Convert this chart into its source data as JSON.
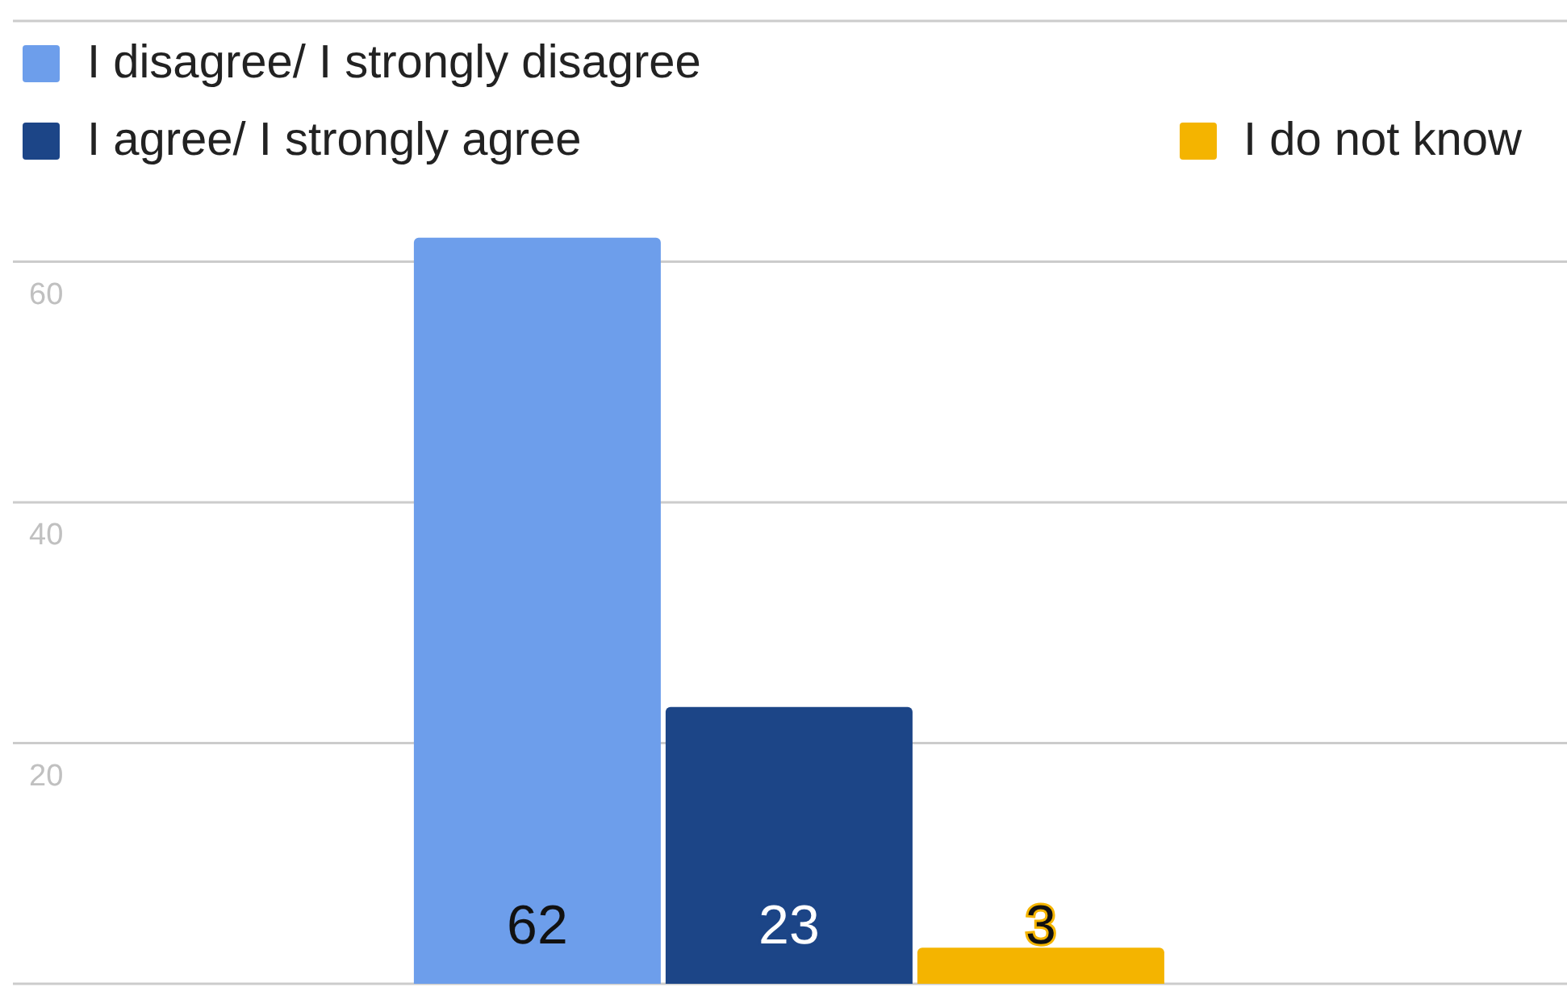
{
  "chart_data": {
    "type": "bar",
    "categories": [
      null
    ],
    "series": [
      {
        "name": "I disagree/ I strongly disagree",
        "color": "#6d9eeb",
        "values": [
          62
        ]
      },
      {
        "name": "I agree/ I strongly agree",
        "color": "#1c4587",
        "values": [
          23
        ]
      },
      {
        "name": "I do not know",
        "color": "#f4b400",
        "values": [
          3
        ]
      }
    ],
    "ylim": [
      0,
      80
    ],
    "yticks": [
      {
        "value": 0,
        "label": null
      },
      20,
      40,
      60,
      {
        "value": 80,
        "label": null
      }
    ],
    "grid": "y",
    "legend": "top",
    "data_labels": true,
    "tick_labels": "y"
  }
}
